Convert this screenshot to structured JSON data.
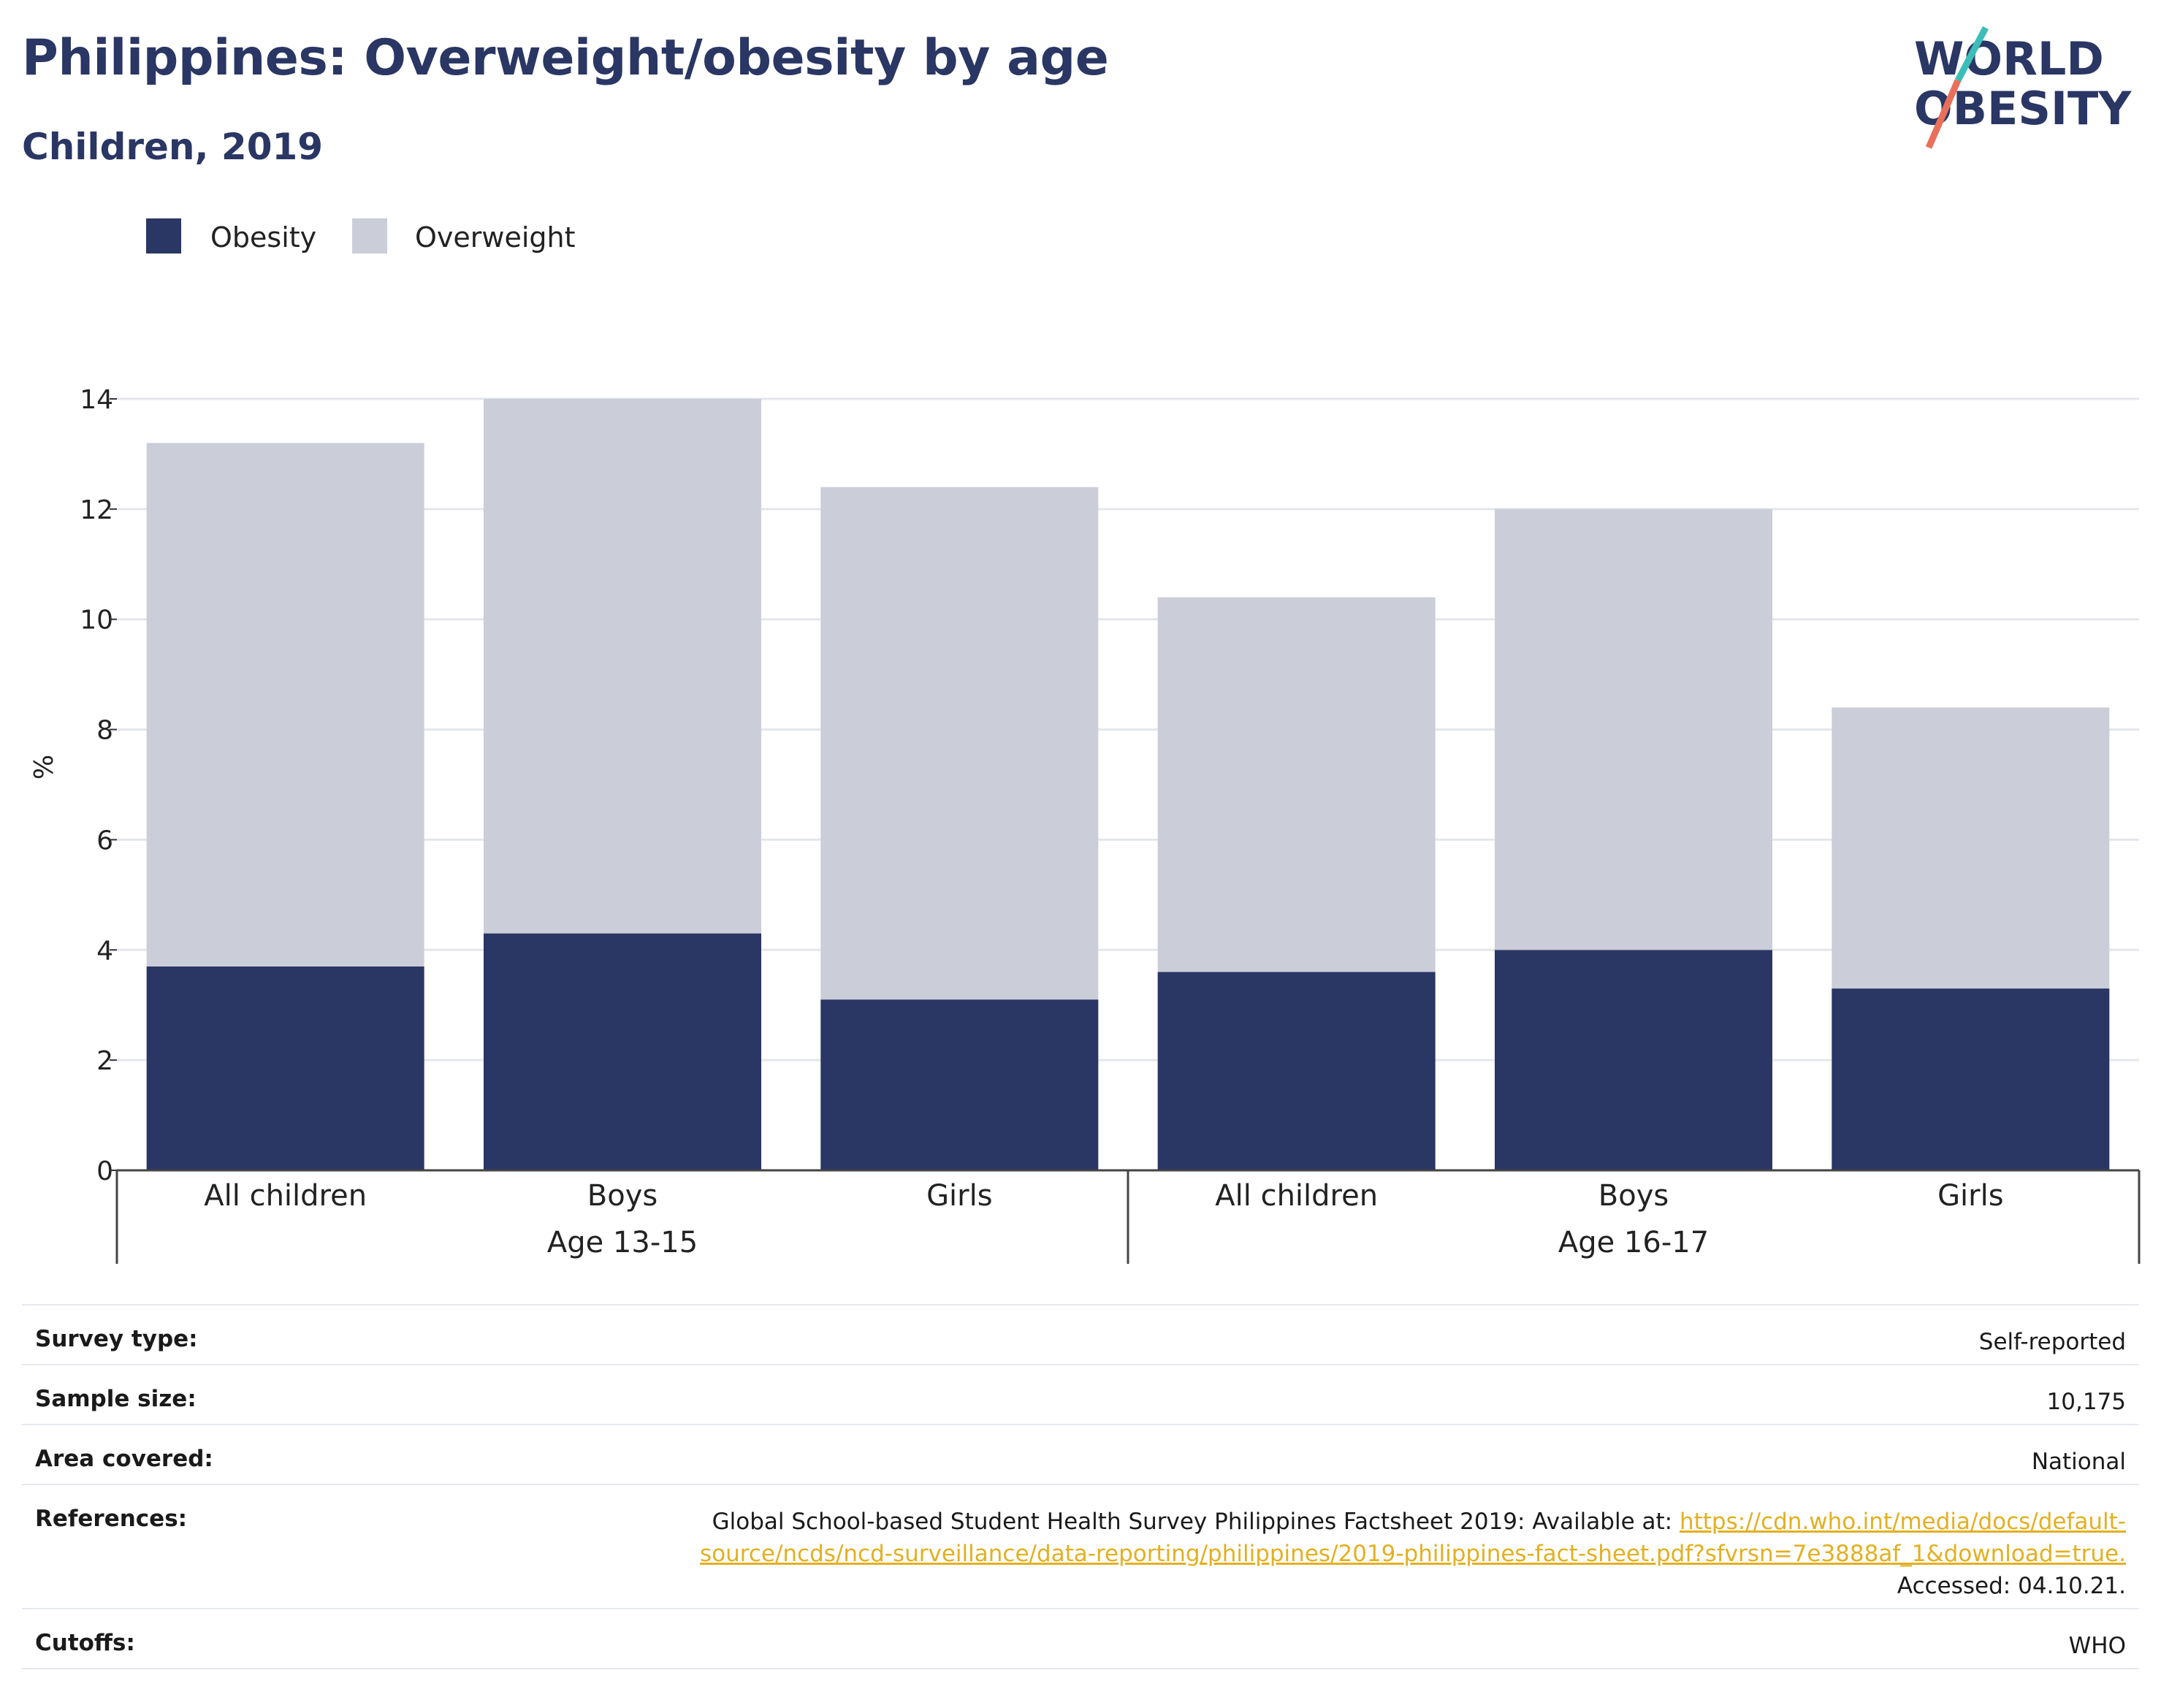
{
  "header": {
    "title": "Philippines: Overweight/obesity by age",
    "subtitle": "Children, 2019"
  },
  "logo": {
    "line1": "WORLD",
    "line2": "OBESITY",
    "colors": {
      "navy": "#2a3663",
      "teal": "#3dbdb8",
      "coral": "#e8705a"
    }
  },
  "chart_data": {
    "type": "bar",
    "stacked": true,
    "ylabel": "%",
    "ylim": [
      0,
      14
    ],
    "yticks": [
      "0",
      "2",
      "4",
      "6",
      "8",
      "10",
      "12",
      "14"
    ],
    "grid": true,
    "legend_position": "top-left",
    "categories": [
      "All children",
      "Boys",
      "Girls",
      "All children",
      "Boys",
      "Girls"
    ],
    "groups": [
      {
        "label": "Age 13-15",
        "categories": [
          "All children",
          "Boys",
          "Girls"
        ]
      },
      {
        "label": "Age 16-17",
        "categories": [
          "All children",
          "Boys",
          "Girls"
        ]
      }
    ],
    "series": [
      {
        "name": "Obesity",
        "color": "#2a3663",
        "values": [
          3.7,
          4.3,
          3.1,
          3.6,
          4.0,
          3.3
        ]
      },
      {
        "name": "Overweight",
        "color": "#cbcdd9",
        "values": [
          9.5,
          9.7,
          9.3,
          6.8,
          8.0,
          5.1
        ]
      }
    ]
  },
  "meta": {
    "survey_type_label": "Survey type:",
    "survey_type_value": "Self-reported",
    "sample_size_label": "Sample size:",
    "sample_size_value": "10,175",
    "area_label": "Area covered:",
    "area_value": "National",
    "references_label": "References:",
    "references_text": "Global School-based Student Health Survey Philippines Factsheet 2019: Available at:",
    "references_link_1": "https://cdn.who.int/media/docs/default-",
    "references_link_2": "source/ncds/ncd-surveillance/data-reporting/philippines/2019-philippines-fact-sheet.pdf?sfvrsn=7e3888af_1&download=true.",
    "references_accessed": "Accessed: 04.10.21.",
    "cutoffs_label": "Cutoffs:",
    "cutoffs_value": "WHO"
  }
}
